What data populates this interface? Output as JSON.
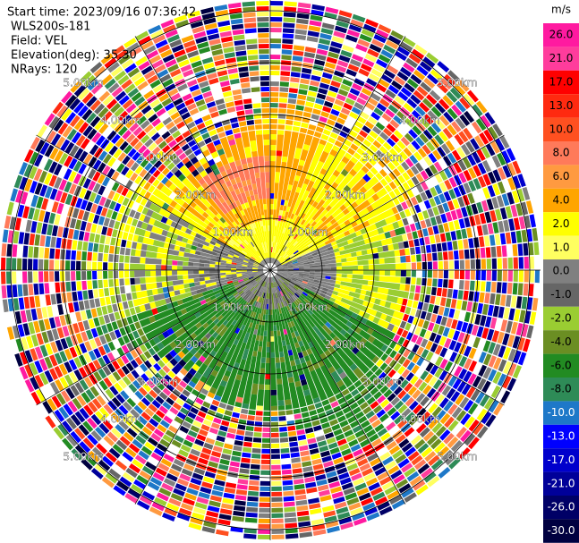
{
  "header": {
    "lines": [
      "Start time: 2023/09/16 07:36:42",
      "WLS200s-181",
      "Field: VEL",
      "Elevation(deg): 35.30",
      "NRays: 120"
    ]
  },
  "colorbar": {
    "unit": "m/s",
    "ticks": [
      {
        "value": 26,
        "label": "26.0"
      },
      {
        "value": 21,
        "label": "21.0"
      },
      {
        "value": 17,
        "label": "17.0"
      },
      {
        "value": 13,
        "label": "13.0"
      },
      {
        "value": 10,
        "label": "10.0"
      },
      {
        "value": 8,
        "label": "8.0"
      },
      {
        "value": 6,
        "label": "6.0"
      },
      {
        "value": 4,
        "label": "4.0"
      },
      {
        "value": 2,
        "label": "2.0"
      },
      {
        "value": 1,
        "label": "1.0"
      },
      {
        "value": 0,
        "label": "0.0"
      },
      {
        "value": -1,
        "label": "-1.0"
      },
      {
        "value": -2,
        "label": "-2.0"
      },
      {
        "value": -4,
        "label": "-4.0"
      },
      {
        "value": -6,
        "label": "-6.0"
      },
      {
        "value": -8,
        "label": "-8.0"
      },
      {
        "value": -10,
        "label": "-10.0"
      },
      {
        "value": -13,
        "label": "-13.0"
      },
      {
        "value": -17,
        "label": "-17.0"
      },
      {
        "value": -21,
        "label": "-21.0"
      },
      {
        "value": -26,
        "label": "-26.0"
      },
      {
        "value": -30,
        "label": "-30.0"
      }
    ],
    "colors": [
      "#ff1aa0",
      "#ff3c9c",
      "#ff0000",
      "#ff2a10",
      "#ff5020",
      "#ff7a5a",
      "#ff9a40",
      "#ffa500",
      "#ffff00",
      "#ffff60",
      "#808080",
      "#666666",
      "#9acd32",
      "#6b8e23",
      "#228b22",
      "#2e8b57",
      "#1e78c8",
      "#0000ff",
      "#0000cc",
      "#000099",
      "#000066",
      "#000040"
    ]
  },
  "ring_labels": [
    "1.00km",
    "2.00km",
    "3.00km",
    "4.00km",
    "5.00km"
  ]
}
